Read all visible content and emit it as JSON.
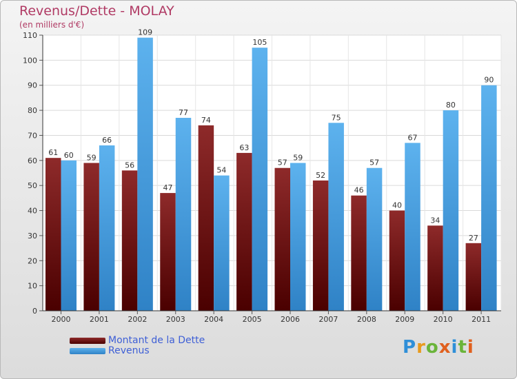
{
  "title": "Revenus/Dette - MOLAY",
  "subtitle": "(en milliers d'€)",
  "logo_text": "Proxiti",
  "colors": {
    "title": "#b03a64",
    "dette": "#7a1414",
    "revenus": "#4ea6e6",
    "legend_text": "#3e5fd6"
  },
  "chart_data": {
    "type": "bar",
    "title": "Revenus/Dette - MOLAY",
    "subtitle": "(en milliers d'€)",
    "categories": [
      "2000",
      "2001",
      "2002",
      "2003",
      "2004",
      "2005",
      "2006",
      "2007",
      "2008",
      "2009",
      "2010",
      "2011"
    ],
    "series": [
      {
        "name": "Montant de la Dette",
        "color": "#7a1414",
        "values": [
          61,
          59,
          56,
          47,
          74,
          63,
          57,
          52,
          46,
          40,
          34,
          27
        ]
      },
      {
        "name": "Revenus",
        "color": "#4ea6e6",
        "values": [
          60,
          66,
          109,
          77,
          54,
          105,
          59,
          75,
          57,
          67,
          80,
          90
        ]
      }
    ],
    "ylim": [
      0,
      110
    ],
    "yticks": [
      0,
      10,
      20,
      30,
      40,
      50,
      60,
      70,
      80,
      90,
      100,
      110
    ],
    "grid": true,
    "legend_position": "bottom-left",
    "data_labels": true
  }
}
